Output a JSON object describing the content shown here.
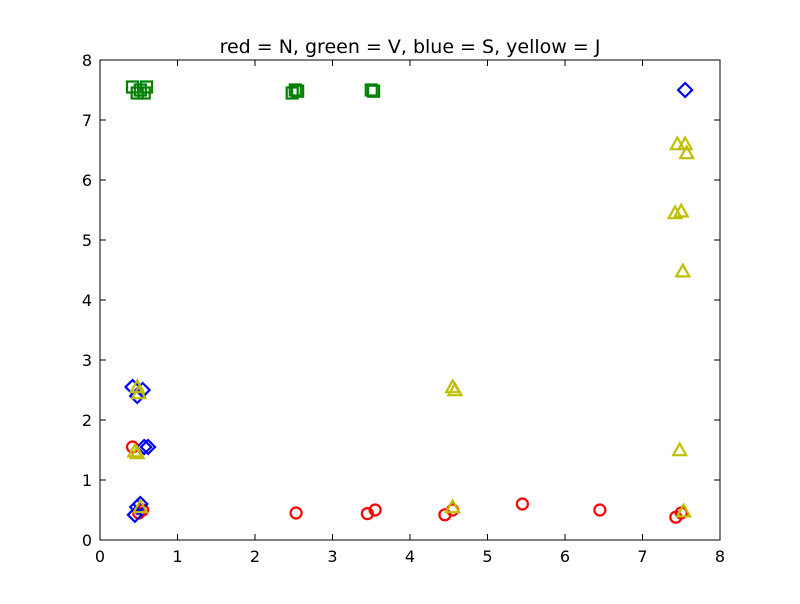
{
  "chart_data": {
    "type": "scatter",
    "title": "red = N, green = V, blue = S, yellow = J",
    "xlabel": "",
    "ylabel": "",
    "xlim": [
      0,
      8
    ],
    "ylim": [
      0,
      8
    ],
    "xticks": [
      "0",
      "1",
      "2",
      "3",
      "4",
      "5",
      "6",
      "7",
      "8"
    ],
    "yticks": [
      "0",
      "1",
      "2",
      "3",
      "4",
      "5",
      "6",
      "7",
      "8"
    ],
    "grid": false,
    "series": [
      {
        "color": "#ff0000",
        "marker": "circle",
        "points": [
          [
            0.42,
            1.55
          ],
          [
            0.5,
            0.45
          ],
          [
            0.55,
            0.5
          ],
          [
            2.53,
            0.45
          ],
          [
            3.45,
            0.44
          ],
          [
            3.55,
            0.5
          ],
          [
            4.45,
            0.42
          ],
          [
            4.55,
            0.5
          ],
          [
            5.45,
            0.6
          ],
          [
            6.45,
            0.5
          ],
          [
            7.43,
            0.38
          ],
          [
            7.5,
            0.45
          ]
        ]
      },
      {
        "color": "#008000",
        "marker": "square",
        "points": [
          [
            0.42,
            7.55
          ],
          [
            0.48,
            7.45
          ],
          [
            0.52,
            7.5
          ],
          [
            0.57,
            7.45
          ],
          [
            0.6,
            7.55
          ],
          [
            2.48,
            7.45
          ],
          [
            2.52,
            7.5
          ],
          [
            2.55,
            7.48
          ],
          [
            3.5,
            7.5
          ],
          [
            3.53,
            7.48
          ]
        ]
      },
      {
        "color": "#0000ff",
        "marker": "diamond",
        "points": [
          [
            0.42,
            2.55
          ],
          [
            0.48,
            2.4
          ],
          [
            0.55,
            2.5
          ],
          [
            0.57,
            1.55
          ],
          [
            0.62,
            1.55
          ],
          [
            0.45,
            0.42
          ],
          [
            0.48,
            0.55
          ],
          [
            0.52,
            0.6
          ],
          [
            7.55,
            7.5
          ]
        ]
      },
      {
        "color": "#bfbf00",
        "marker": "triangle",
        "points": [
          [
            0.45,
            1.48
          ],
          [
            0.48,
            2.55
          ],
          [
            0.5,
            2.45
          ],
          [
            0.48,
            1.45
          ],
          [
            0.52,
            0.55
          ],
          [
            4.55,
            2.55
          ],
          [
            4.58,
            2.5
          ],
          [
            4.55,
            0.55
          ],
          [
            7.45,
            6.6
          ],
          [
            7.55,
            6.6
          ],
          [
            7.57,
            6.45
          ],
          [
            7.42,
            5.45
          ],
          [
            7.5,
            5.48
          ],
          [
            7.52,
            4.48
          ],
          [
            7.48,
            1.5
          ],
          [
            7.53,
            0.48
          ]
        ]
      }
    ]
  }
}
